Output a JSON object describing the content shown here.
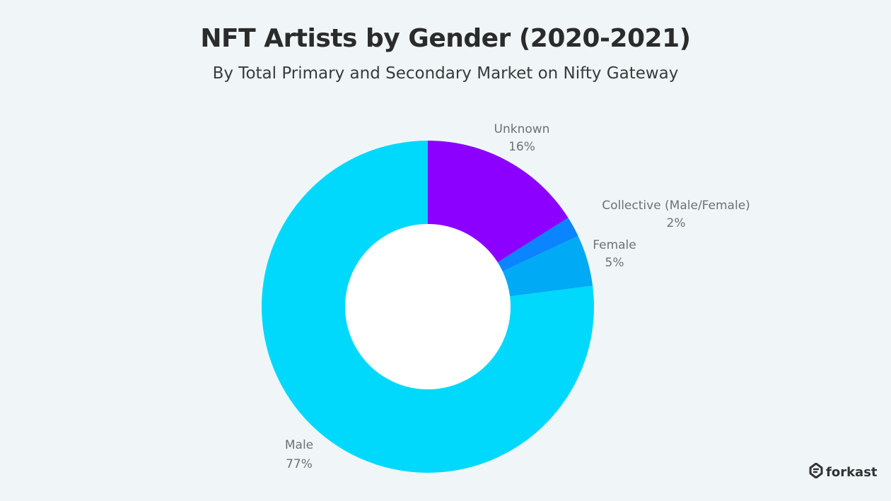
{
  "colors": {
    "background": "#f0f6f7",
    "hole": "#ffffff"
  },
  "chart_data": {
    "type": "pie",
    "donut": true,
    "title": "NFT Artists by Gender (2020-2021)",
    "subtitle": "By Total Primary and Secondary Market on Nifty Gateway",
    "slices": [
      {
        "label": "Unknown",
        "value": 16,
        "value_label": "16%",
        "color": "#8b00ff"
      },
      {
        "label": "Collective (Male/Female)",
        "value": 2,
        "value_label": "2%",
        "color": "#0a84ff"
      },
      {
        "label": "Female",
        "value": 5,
        "value_label": "5%",
        "color": "#00aaf5"
      },
      {
        "label": "Male",
        "value": 77,
        "value_label": "77%",
        "color": "#00d8fc"
      }
    ]
  },
  "brand": {
    "name": "forkast",
    "icon": "forkast-logo-icon"
  }
}
